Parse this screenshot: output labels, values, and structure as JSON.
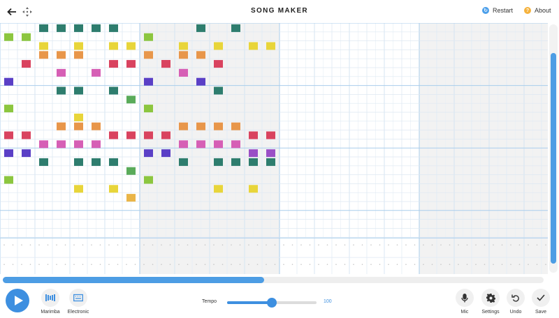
{
  "header": {
    "title": "SONG MAKER",
    "back_icon": "arrow-left-icon",
    "move_icon": "move-arrows-icon",
    "restart_label": "Restart",
    "about_label": "About",
    "restart_icon": "restart-icon",
    "about_icon": "question-icon"
  },
  "grid": {
    "columns": 32,
    "rows": 24,
    "visible_shaded_bars": [
      2,
      6
    ],
    "notes": [
      {
        "col": 2,
        "row": 0,
        "color": "#2e7d6e"
      },
      {
        "col": 3,
        "row": 0,
        "color": "#2e7d6e"
      },
      {
        "col": 4,
        "row": 0,
        "color": "#2e7d6e"
      },
      {
        "col": 5,
        "row": 0,
        "color": "#2e7d6e"
      },
      {
        "col": 6,
        "row": 0,
        "color": "#2e7d6e"
      },
      {
        "col": 11,
        "row": 0,
        "color": "#2e7d6e"
      },
      {
        "col": 13,
        "row": 0,
        "color": "#2e7d6e"
      },
      {
        "col": 0,
        "row": 1,
        "color": "#8cc63f"
      },
      {
        "col": 1,
        "row": 1,
        "color": "#8cc63f"
      },
      {
        "col": 8,
        "row": 1,
        "color": "#8cc63f"
      },
      {
        "col": 2,
        "row": 2,
        "color": "#e8d53a"
      },
      {
        "col": 4,
        "row": 2,
        "color": "#e8d53a"
      },
      {
        "col": 6,
        "row": 2,
        "color": "#e8d53a"
      },
      {
        "col": 7,
        "row": 2,
        "color": "#e8d53a"
      },
      {
        "col": 10,
        "row": 2,
        "color": "#e8d53a"
      },
      {
        "col": 12,
        "row": 2,
        "color": "#e8d53a"
      },
      {
        "col": 14,
        "row": 2,
        "color": "#e8d53a"
      },
      {
        "col": 15,
        "row": 2,
        "color": "#e8d53a"
      },
      {
        "col": 2,
        "row": 3,
        "color": "#e8964a"
      },
      {
        "col": 3,
        "row": 3,
        "color": "#e8964a"
      },
      {
        "col": 4,
        "row": 3,
        "color": "#e8964a"
      },
      {
        "col": 8,
        "row": 3,
        "color": "#e8964a"
      },
      {
        "col": 10,
        "row": 3,
        "color": "#e8964a"
      },
      {
        "col": 11,
        "row": 3,
        "color": "#e8964a"
      },
      {
        "col": 1,
        "row": 4,
        "color": "#d9435f"
      },
      {
        "col": 6,
        "row": 4,
        "color": "#d9435f"
      },
      {
        "col": 7,
        "row": 4,
        "color": "#d9435f"
      },
      {
        "col": 9,
        "row": 4,
        "color": "#d9435f"
      },
      {
        "col": 9,
        "row": 4,
        "color": "#d9435f"
      },
      {
        "col": 12,
        "row": 4,
        "color": "#d9435f"
      },
      {
        "col": 3,
        "row": 5,
        "color": "#d65fb5"
      },
      {
        "col": 5,
        "row": 5,
        "color": "#d65fb5"
      },
      {
        "col": 10,
        "row": 5,
        "color": "#d65fb5"
      },
      {
        "col": 10,
        "row": 5,
        "color": "#d65fb5"
      },
      {
        "col": 0,
        "row": 6,
        "color": "#5a3fc6"
      },
      {
        "col": 8,
        "row": 6,
        "color": "#5a3fc6"
      },
      {
        "col": 11,
        "row": 6,
        "color": "#5a3fc6"
      },
      {
        "col": 3,
        "row": 7,
        "color": "#2e7d6e"
      },
      {
        "col": 4,
        "row": 7,
        "color": "#2e7d6e"
      },
      {
        "col": 6,
        "row": 7,
        "color": "#2e7d6e"
      },
      {
        "col": 12,
        "row": 7,
        "color": "#2e7d6e"
      },
      {
        "col": 7,
        "row": 8,
        "color": "#5aab5a"
      },
      {
        "col": 0,
        "row": 9,
        "color": "#8cc63f"
      },
      {
        "col": 8,
        "row": 9,
        "color": "#8cc63f"
      },
      {
        "col": 4,
        "row": 10,
        "color": "#e8d53a"
      },
      {
        "col": 3,
        "row": 11,
        "color": "#e8964a"
      },
      {
        "col": 3,
        "row": 11,
        "color": "#e8964a"
      },
      {
        "col": 4,
        "row": 11,
        "color": "#e8964a"
      },
      {
        "col": 5,
        "row": 11,
        "color": "#e8964a"
      },
      {
        "col": 10,
        "row": 11,
        "color": "#e8964a"
      },
      {
        "col": 11,
        "row": 11,
        "color": "#e8964a"
      },
      {
        "col": 12,
        "row": 11,
        "color": "#e8964a"
      },
      {
        "col": 13,
        "row": 11,
        "color": "#e8964a"
      },
      {
        "col": 0,
        "row": 12,
        "color": "#d9435f"
      },
      {
        "col": 1,
        "row": 12,
        "color": "#d9435f"
      },
      {
        "col": 6,
        "row": 12,
        "color": "#d9435f"
      },
      {
        "col": 7,
        "row": 12,
        "color": "#d9435f"
      },
      {
        "col": 8,
        "row": 12,
        "color": "#d9435f"
      },
      {
        "col": 9,
        "row": 12,
        "color": "#d9435f"
      },
      {
        "col": 14,
        "row": 12,
        "color": "#d9435f"
      },
      {
        "col": 15,
        "row": 12,
        "color": "#d9435f"
      },
      {
        "col": 2,
        "row": 13,
        "color": "#d65fb5"
      },
      {
        "col": 3,
        "row": 13,
        "color": "#d65fb5"
      },
      {
        "col": 4,
        "row": 13,
        "color": "#d65fb5"
      },
      {
        "col": 5,
        "row": 13,
        "color": "#d65fb5"
      },
      {
        "col": 10,
        "row": 13,
        "color": "#d65fb5"
      },
      {
        "col": 11,
        "row": 13,
        "color": "#d65fb5"
      },
      {
        "col": 12,
        "row": 13,
        "color": "#d65fb5"
      },
      {
        "col": 13,
        "row": 13,
        "color": "#d65fb5"
      },
      {
        "col": 0,
        "row": 14,
        "color": "#5a3fc6"
      },
      {
        "col": 1,
        "row": 14,
        "color": "#5a3fc6"
      },
      {
        "col": 8,
        "row": 14,
        "color": "#5a3fc6"
      },
      {
        "col": 9,
        "row": 14,
        "color": "#5a3fc6"
      },
      {
        "col": 14,
        "row": 14,
        "color": "#9a4fc6"
      },
      {
        "col": 15,
        "row": 14,
        "color": "#9a4fc6"
      },
      {
        "col": 2,
        "row": 15,
        "color": "#2e7d6e"
      },
      {
        "col": 4,
        "row": 15,
        "color": "#2e7d6e"
      },
      {
        "col": 5,
        "row": 15,
        "color": "#2e7d6e"
      },
      {
        "col": 6,
        "row": 15,
        "color": "#2e7d6e"
      },
      {
        "col": 10,
        "row": 15,
        "color": "#2e7d6e"
      },
      {
        "col": 12,
        "row": 15,
        "color": "#2e7d6e"
      },
      {
        "col": 13,
        "row": 15,
        "color": "#2e7d6e"
      },
      {
        "col": 14,
        "row": 15,
        "color": "#2e7d6e"
      },
      {
        "col": 15,
        "row": 15,
        "color": "#2e7d6e"
      },
      {
        "col": 7,
        "row": 16,
        "color": "#5aab5a"
      },
      {
        "col": 0,
        "row": 17,
        "color": "#8cc63f"
      },
      {
        "col": 8,
        "row": 17,
        "color": "#8cc63f"
      },
      {
        "col": 4,
        "row": 18,
        "color": "#e8d53a"
      },
      {
        "col": 6,
        "row": 18,
        "color": "#e8d53a"
      },
      {
        "col": 12,
        "row": 18,
        "color": "#e8d53a"
      },
      {
        "col": 14,
        "row": 18,
        "color": "#e8d53a"
      },
      {
        "col": 7,
        "row": 19,
        "color": "#eab548"
      }
    ]
  },
  "footer": {
    "play_icon": "play-icon",
    "marimba_label": "Marimba",
    "electronic_label": "Electronic",
    "tempo_label": "Tempo",
    "tempo_value": "100",
    "tempo_fraction": 0.5,
    "mic_label": "Mic",
    "settings_label": "Settings",
    "undo_label": "Undo",
    "save_label": "Save"
  }
}
